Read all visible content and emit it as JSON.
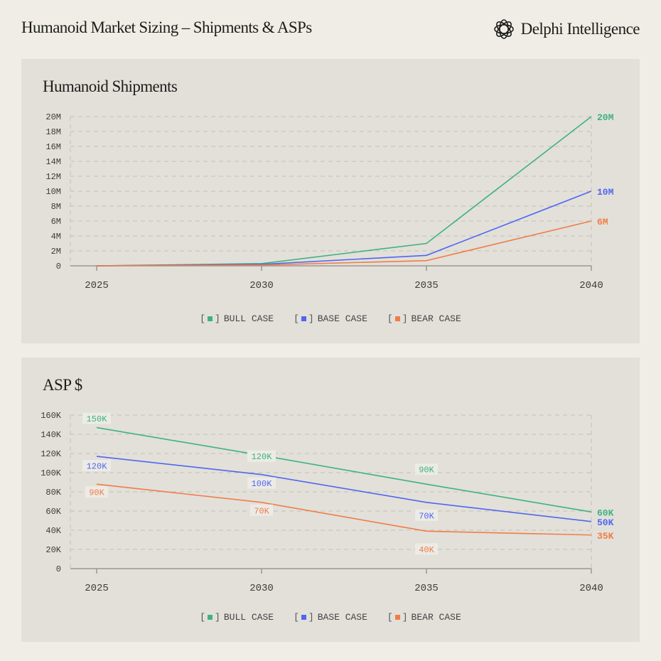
{
  "header": {
    "title": "Humanoid Market Sizing – Shipments & ASPs",
    "brand": "Delphi Intelligence"
  },
  "colors": {
    "bull": "#3fb27f",
    "base": "#5066f0",
    "bear": "#f27c48",
    "grid": "#c2c0b8",
    "axis": "#9a9890",
    "tick_text": "#3c3c3a"
  },
  "legend": {
    "bracket_open": "[",
    "bracket_close": "]",
    "bull": "BULL CASE",
    "base": "BASE CASE",
    "bear": "BEAR CASE"
  },
  "chart_data": [
    {
      "type": "line",
      "title": "Humanoid Shipments",
      "x": [
        2025,
        2030,
        2035,
        2040
      ],
      "ylim": [
        0,
        20000000
      ],
      "yticks": [
        0,
        2000000,
        4000000,
        6000000,
        8000000,
        10000000,
        12000000,
        14000000,
        16000000,
        18000000,
        20000000
      ],
      "ytick_labels": [
        "0",
        "2M",
        "4M",
        "6M",
        "8M",
        "10M",
        "12M",
        "14M",
        "16M",
        "18M",
        "20M"
      ],
      "xtick_labels": [
        "2025",
        "2030",
        "2035",
        "2040"
      ],
      "grid": true,
      "legend": "bottom-center",
      "series": [
        {
          "name": "BULL CASE",
          "key": "bull",
          "values": [
            0,
            300000,
            3000000,
            20000000
          ],
          "end_label": "20M"
        },
        {
          "name": "BASE CASE",
          "key": "base",
          "values": [
            0,
            200000,
            1400000,
            10000000
          ],
          "end_label": "10M"
        },
        {
          "name": "BEAR CASE",
          "key": "bear",
          "values": [
            0,
            100000,
            700000,
            6000000
          ],
          "end_label": "6M"
        }
      ]
    },
    {
      "type": "line",
      "title": "ASP $",
      "x": [
        2025,
        2030,
        2035,
        2040
      ],
      "ylim": [
        0,
        160000
      ],
      "yticks": [
        0,
        20000,
        40000,
        60000,
        80000,
        100000,
        120000,
        140000,
        160000
      ],
      "ytick_labels": [
        "0",
        "20K",
        "40K",
        "60K",
        "80K",
        "100K",
        "120K",
        "140K",
        "160K"
      ],
      "xtick_labels": [
        "2025",
        "2030",
        "2035",
        "2040"
      ],
      "grid": true,
      "legend": "bottom-center",
      "series": [
        {
          "name": "BULL CASE",
          "key": "bull",
          "values": [
            147000,
            118000,
            88000,
            59000
          ],
          "point_labels": [
            "150K",
            "120K",
            "90K",
            null
          ],
          "end_label": "60K"
        },
        {
          "name": "BASE CASE",
          "key": "base",
          "values": [
            117000,
            98000,
            69000,
            49000
          ],
          "point_labels": [
            "120K",
            "100K",
            "70K",
            null
          ],
          "end_label": "50K"
        },
        {
          "name": "BEAR CASE",
          "key": "bear",
          "values": [
            88000,
            69000,
            39000,
            35000
          ],
          "point_labels": [
            "90K",
            "70K",
            "40K",
            null
          ],
          "end_label": "35K"
        }
      ]
    }
  ]
}
